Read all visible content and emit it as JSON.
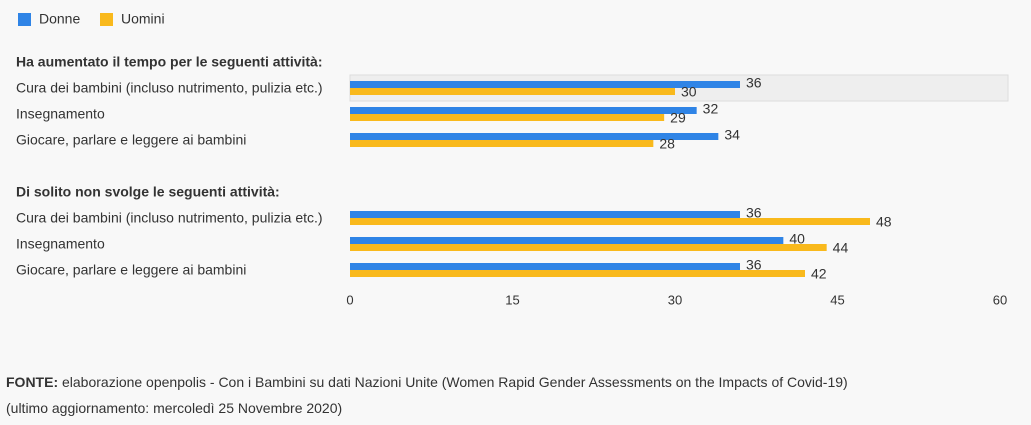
{
  "chart_data": {
    "type": "bar",
    "orientation": "horizontal",
    "legend": [
      {
        "name": "Donne",
        "color": "#2f84e6"
      },
      {
        "name": "Uomini",
        "color": "#f9b91c"
      }
    ],
    "sections": [
      {
        "title": "Ha aumentato il tempo per le seguenti attività:",
        "categories": [
          "Cura dei bambini (incluso nutrimento, pulizia etc.)",
          "Insegnamento",
          "Giocare, parlare e leggere ai bambini"
        ],
        "series": [
          {
            "name": "Donne",
            "values": [
              36,
              32,
              34
            ]
          },
          {
            "name": "Uomini",
            "values": [
              30,
              29,
              28
            ]
          }
        ]
      },
      {
        "title": "Di solito non svolge le seguenti attività:",
        "categories": [
          "Cura dei bambini (incluso nutrimento, pulizia etc.)",
          "Insegnamento",
          "Giocare, parlare e leggere ai bambini"
        ],
        "series": [
          {
            "name": "Donne",
            "values": [
              36,
              40,
              36
            ]
          },
          {
            "name": "Uomini",
            "values": [
              48,
              44,
              42
            ]
          }
        ]
      }
    ],
    "xlim": [
      0,
      60
    ],
    "xticks": [
      0,
      15,
      30,
      45,
      60
    ]
  },
  "source": {
    "label": "FONTE:",
    "text": "elaborazione openpolis - Con i Bambini su dati Nazioni Unite (Women Rapid Gender Assessments on the Impacts of Covid-19)",
    "updated": "(ultimo aggiornamento: mercoledì 25 Novembre 2020)"
  }
}
